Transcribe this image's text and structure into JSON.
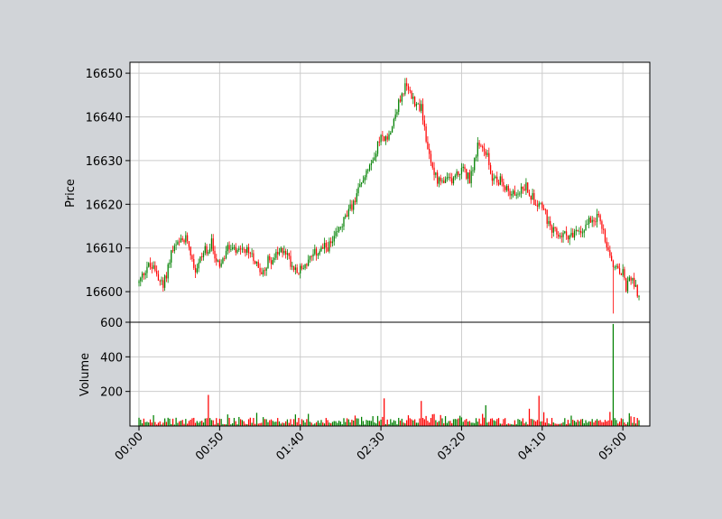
{
  "chart_data": [
    {
      "panel": "price",
      "type": "candlestick",
      "ylabel": "Price",
      "ylim": [
        16593,
        16652.5
      ],
      "yticks": [
        16600,
        16610,
        16620,
        16630,
        16640,
        16650
      ],
      "grid": true,
      "colors": {
        "up": "#008000",
        "down": "#ff0000",
        "grid": "#cccccc"
      },
      "x_range_minutes": [
        -5.6,
        316.7
      ],
      "close_anchors_minutes": [
        0,
        5,
        10,
        15,
        20,
        25,
        30,
        35,
        40,
        45,
        50,
        55,
        60,
        65,
        70,
        75,
        80,
        85,
        90,
        95,
        100,
        105,
        110,
        115,
        120,
        125,
        130,
        135,
        140,
        145,
        150,
        155,
        160,
        165,
        170,
        175,
        180,
        185,
        190,
        195,
        200,
        205,
        210,
        215,
        220,
        225,
        230,
        235,
        240,
        245,
        250,
        255,
        260,
        265,
        270,
        275,
        280,
        285,
        290,
        295,
        300,
        302,
        305,
        310
      ],
      "close_anchors": [
        16602,
        16606,
        16605,
        16601,
        16609,
        16611,
        16612,
        16605,
        16609,
        16611,
        16605,
        16610,
        16609,
        16609,
        16609,
        16604,
        16607,
        16608,
        16610,
        16606,
        16605,
        16607,
        16609,
        16610,
        16611,
        16615,
        16618,
        16622,
        16627,
        16631,
        16635,
        16636,
        16642,
        16647,
        16644,
        16642,
        16631,
        16625,
        16625,
        16626,
        16628,
        16626,
        16633,
        16632,
        16625,
        16626,
        16622,
        16623,
        16624,
        16621,
        16620,
        16614,
        16613,
        16613,
        16613,
        16614,
        16617,
        16617,
        16611,
        16605,
        16604,
        16601,
        16603,
        16599
      ]
    },
    {
      "panel": "volume",
      "type": "bar",
      "ylabel": "Volume",
      "ylim": [
        0,
        600
      ],
      "yticks": [
        200,
        400,
        600
      ],
      "grid": true,
      "spikes": [
        {
          "minute": 43,
          "value": 180
        },
        {
          "minute": 152,
          "value": 160
        },
        {
          "minute": 175,
          "value": 145
        },
        {
          "minute": 215,
          "value": 120
        },
        {
          "minute": 242,
          "value": 100
        },
        {
          "minute": 248,
          "value": 175
        },
        {
          "minute": 294,
          "value": 590
        }
      ]
    }
  ],
  "x_axis": {
    "ticks": [
      {
        "minute": 0,
        "label": "00:00"
      },
      {
        "minute": 50,
        "label": "00:50"
      },
      {
        "minute": 100,
        "label": "01:40"
      },
      {
        "minute": 150,
        "label": "02:30"
      },
      {
        "minute": 200,
        "label": "03:20"
      },
      {
        "minute": 250,
        "label": "04:10"
      },
      {
        "minute": 300,
        "label": "05:00"
      }
    ]
  }
}
